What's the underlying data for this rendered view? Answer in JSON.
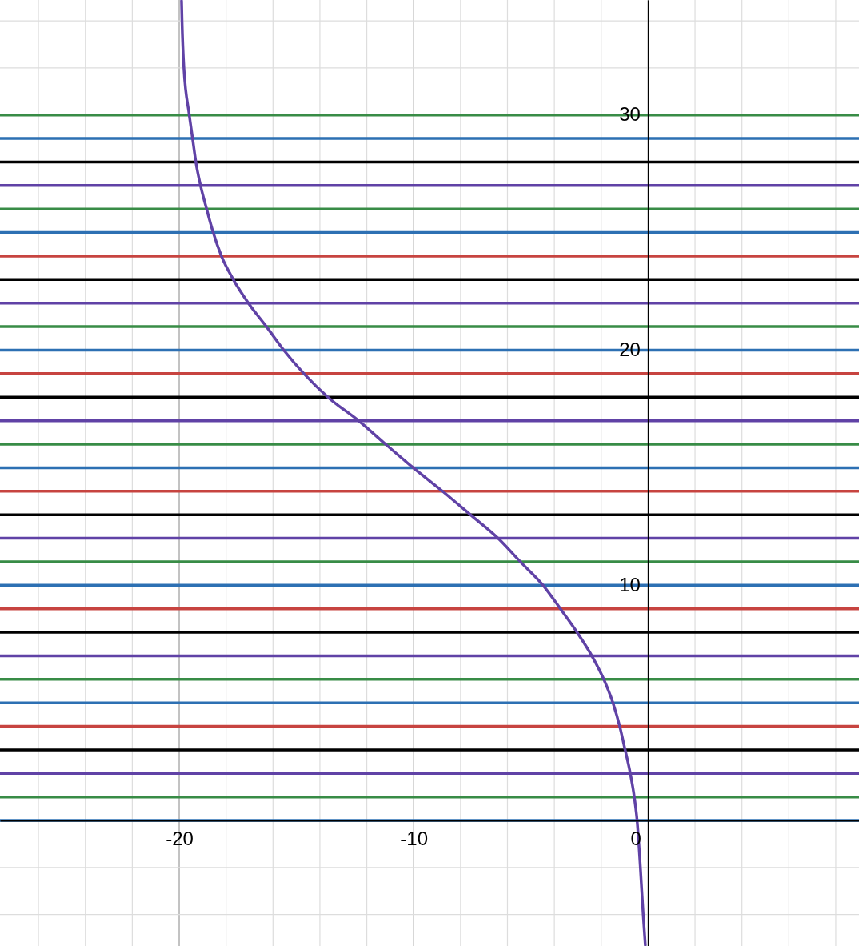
{
  "chart_data": {
    "type": "line",
    "xlim": [
      -27.64,
      8.99
    ],
    "ylim": [
      -5.34,
      34.89
    ],
    "xticks": [
      {
        "value": -26,
        "label": null
      },
      {
        "value": -24,
        "label": null
      },
      {
        "value": -22,
        "label": null
      },
      -20,
      {
        "value": -18,
        "label": null
      },
      {
        "value": -16,
        "label": null
      },
      {
        "value": -14,
        "label": null
      },
      {
        "value": -12,
        "label": null
      },
      -10,
      {
        "value": -8,
        "label": null
      },
      {
        "value": -6,
        "label": null
      },
      {
        "value": -4,
        "label": null
      },
      {
        "value": -2,
        "label": null
      },
      0,
      {
        "value": 2,
        "label": null
      },
      {
        "value": 4,
        "label": null
      },
      {
        "value": 6,
        "label": null
      },
      {
        "value": 8,
        "label": null
      }
    ],
    "yticks": [
      {
        "value": -4,
        "label": null
      },
      {
        "value": -2,
        "label": null
      },
      {
        "value": 2,
        "label": null
      },
      {
        "value": 4,
        "label": null
      },
      {
        "value": 6,
        "label": null
      },
      {
        "value": 8,
        "label": null
      },
      10,
      {
        "value": 12,
        "label": null
      },
      {
        "value": 14,
        "label": null
      },
      {
        "value": 16,
        "label": null
      },
      {
        "value": 18,
        "label": null
      },
      20,
      {
        "value": 22,
        "label": null
      },
      {
        "value": 24,
        "label": null
      },
      {
        "value": 26,
        "label": null
      },
      {
        "value": 28,
        "label": null
      },
      30,
      {
        "value": 32,
        "label": null
      },
      {
        "value": 34,
        "label": null
      }
    ],
    "grid": true,
    "series": [
      {
        "color": "#6042a6",
        "line_style": "solid",
        "x": [
          -19.9,
          -19.88,
          -19.8,
          -19.57,
          -19.43,
          -19.29,
          -19.09,
          -18.83,
          -18.55,
          -18.2,
          -17.69,
          -17.05,
          -16.28,
          -15.54,
          -14.68,
          -13.66,
          -12.35,
          -11.2,
          -10.02,
          -8.77,
          -7.58,
          -6.4,
          -5.45,
          -4.48,
          -3.74,
          -3.03,
          -2.4,
          -1.89,
          -1.5,
          -1.21,
          -0.98,
          -0.76,
          -0.59,
          -0.47,
          -0.33,
          -0.21,
          -0.12
        ],
        "values": [
          34.85,
          34,
          32,
          30,
          29,
          28,
          27,
          26,
          25,
          24,
          23,
          22,
          21,
          20,
          19,
          18,
          17,
          16,
          15,
          14,
          13,
          12,
          11,
          10,
          9,
          8,
          7,
          6,
          5,
          4,
          3,
          2,
          1,
          0,
          -2,
          -4,
          -5.3
        ]
      }
    ],
    "ref_lines": [
      {
        "axis": "y",
        "value": 0,
        "color": "#2d70b3"
      },
      {
        "axis": "y",
        "value": 1,
        "color": "#388c46"
      },
      {
        "axis": "y",
        "value": 2,
        "color": "#6042a6"
      },
      {
        "axis": "y",
        "value": 3,
        "color": "#000000"
      },
      {
        "axis": "y",
        "value": 4,
        "color": "#c74440"
      },
      {
        "axis": "y",
        "value": 5,
        "color": "#2d70b3"
      },
      {
        "axis": "y",
        "value": 6,
        "color": "#388c46"
      },
      {
        "axis": "y",
        "value": 7,
        "color": "#6042a6"
      },
      {
        "axis": "y",
        "value": 8,
        "color": "#000000"
      },
      {
        "axis": "y",
        "value": 9,
        "color": "#c74440"
      },
      {
        "axis": "y",
        "value": 10,
        "color": "#2d70b3"
      },
      {
        "axis": "y",
        "value": 11,
        "color": "#388c46"
      },
      {
        "axis": "y",
        "value": 12,
        "color": "#6042a6"
      },
      {
        "axis": "y",
        "value": 13,
        "color": "#000000"
      },
      {
        "axis": "y",
        "value": 14,
        "color": "#c74440"
      },
      {
        "axis": "y",
        "value": 15,
        "color": "#2d70b3"
      },
      {
        "axis": "y",
        "value": 16,
        "color": "#388c46"
      },
      {
        "axis": "y",
        "value": 17,
        "color": "#6042a6"
      },
      {
        "axis": "y",
        "value": 18,
        "color": "#000000"
      },
      {
        "axis": "y",
        "value": 19,
        "color": "#c74440"
      },
      {
        "axis": "y",
        "value": 20,
        "color": "#2d70b3"
      },
      {
        "axis": "y",
        "value": 21,
        "color": "#388c46"
      },
      {
        "axis": "y",
        "value": 22,
        "color": "#6042a6"
      },
      {
        "axis": "y",
        "value": 23,
        "color": "#000000"
      },
      {
        "axis": "y",
        "value": 24,
        "color": "#c74440"
      },
      {
        "axis": "y",
        "value": 25,
        "color": "#2d70b3"
      },
      {
        "axis": "y",
        "value": 26,
        "color": "#388c46"
      },
      {
        "axis": "y",
        "value": 27,
        "color": "#6042a6"
      },
      {
        "axis": "y",
        "value": 28,
        "color": "#000000"
      },
      {
        "axis": "y",
        "value": 29,
        "color": "#2d70b3"
      },
      {
        "axis": "y",
        "value": 30,
        "color": "#388c46"
      }
    ]
  }
}
